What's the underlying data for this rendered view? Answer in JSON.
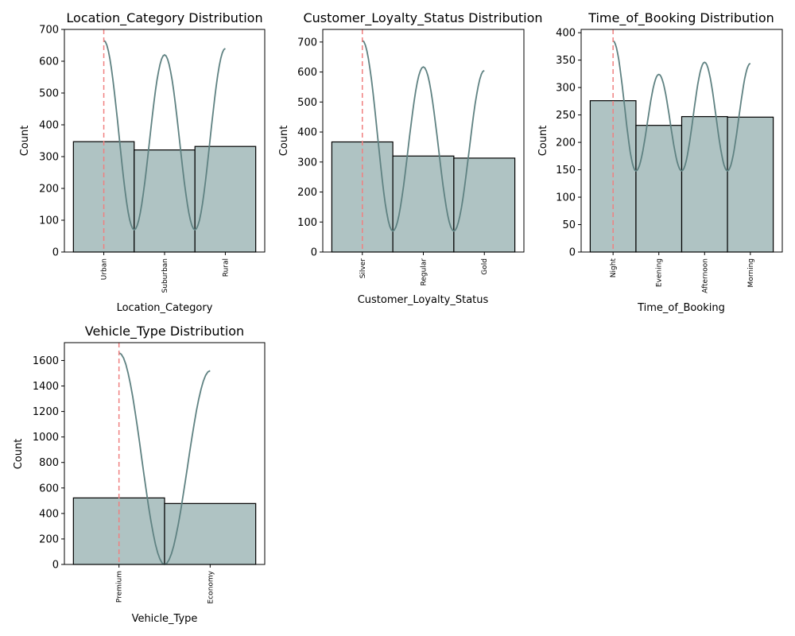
{
  "chart_data": [
    {
      "type": "bar",
      "title": "Location_Category Distribution",
      "xlabel": "Location_Category",
      "ylabel": "Count",
      "categories": [
        "Urban",
        "Suburban",
        "Rural"
      ],
      "values": [
        347,
        321,
        332
      ],
      "ylim": [
        0,
        700
      ],
      "yticks": [
        0,
        100,
        200,
        300,
        400,
        500,
        600,
        700
      ],
      "kde_peaks": [
        665,
        620,
        640
      ],
      "kde_min": 70,
      "mode_category": "Urban",
      "grid": false
    },
    {
      "type": "bar",
      "title": "Customer_Loyalty_Status Distribution",
      "xlabel": "Customer_Loyalty_Status",
      "ylabel": "Count",
      "categories": [
        "Silver",
        "Regular",
        "Gold"
      ],
      "values": [
        367,
        320,
        313
      ],
      "ylim": [
        0,
        742
      ],
      "yticks": [
        0,
        100,
        200,
        300,
        400,
        500,
        600,
        700
      ],
      "kde_peaks": [
        705,
        617,
        605
      ],
      "kde_min": 70,
      "mode_category": "Silver",
      "grid": false
    },
    {
      "type": "bar",
      "title": "Time_of_Booking Distribution",
      "xlabel": "Time_of_Booking",
      "ylabel": "Count",
      "categories": [
        "Night",
        "Evening",
        "Afternoon",
        "Morning"
      ],
      "values": [
        276,
        231,
        247,
        246
      ],
      "ylim": [
        0,
        406
      ],
      "yticks": [
        0,
        50,
        100,
        150,
        200,
        250,
        300,
        350,
        400
      ],
      "kde_peaks": [
        385,
        324,
        346,
        344
      ],
      "kde_min": 148,
      "mode_category": "Night",
      "grid": false
    },
    {
      "type": "bar",
      "title": "Vehicle_Type Distribution",
      "xlabel": "Vehicle_Type",
      "ylabel": "Count",
      "categories": [
        "Premium",
        "Economy"
      ],
      "values": [
        522,
        478
      ],
      "ylim": [
        0,
        1740
      ],
      "yticks": [
        0,
        200,
        400,
        600,
        800,
        1000,
        1200,
        1400,
        1600
      ],
      "kde_peaks": [
        1660,
        1520
      ],
      "kde_min": 0,
      "mode_category": "Premium",
      "grid": false
    }
  ],
  "colors": {
    "bar_fill": "#afc3c3",
    "bar_edge": "#000000",
    "kde_line": "#5f8282",
    "mode_line": "#f08080"
  }
}
